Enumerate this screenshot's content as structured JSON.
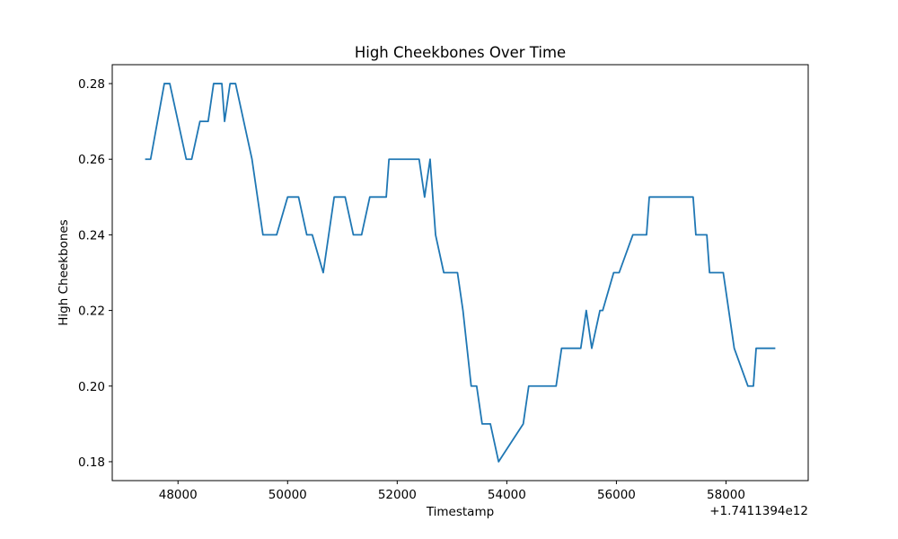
{
  "chart_data": {
    "type": "line",
    "title": "High Cheekbones Over Time",
    "xlabel": "Timestamp",
    "ylabel": "High Cheekbones",
    "x_offset_label": "+1.7411394e12",
    "xlim": [
      46800,
      59500
    ],
    "ylim": [
      0.175,
      0.285
    ],
    "x_ticks": [
      48000,
      50000,
      52000,
      54000,
      56000,
      58000
    ],
    "x_tick_labels": [
      "48000",
      "50000",
      "52000",
      "54000",
      "56000",
      "58000"
    ],
    "y_ticks": [
      0.18,
      0.2,
      0.22,
      0.24,
      0.26,
      0.28
    ],
    "y_tick_labels": [
      "0.18",
      "0.20",
      "0.22",
      "0.24",
      "0.26",
      "0.28"
    ],
    "grid": false,
    "series": [
      {
        "color": "#1f77b4",
        "x": [
          47400,
          47500,
          47750,
          47850,
          48000,
          48150,
          48250,
          48400,
          48550,
          48650,
          48800,
          48850,
          48950,
          49050,
          49200,
          49350,
          49550,
          49800,
          50000,
          50200,
          50350,
          50450,
          50650,
          50850,
          51050,
          51200,
          51350,
          51500,
          51800,
          51850,
          52400,
          52500,
          52600,
          52700,
          52850,
          53100,
          53200,
          53350,
          53450,
          53550,
          53700,
          53850,
          54300,
          54400,
          54900,
          55000,
          55350,
          55450,
          55550,
          55700,
          55750,
          55950,
          56050,
          56300,
          56550,
          56600,
          56650,
          57400,
          57450,
          57650,
          57700,
          57950,
          58150,
          58400,
          58500,
          58550,
          58900
        ],
        "y": [
          0.26,
          0.26,
          0.28,
          0.28,
          0.27,
          0.26,
          0.26,
          0.27,
          0.27,
          0.28,
          0.28,
          0.27,
          0.28,
          0.28,
          0.27,
          0.26,
          0.24,
          0.24,
          0.25,
          0.25,
          0.24,
          0.24,
          0.23,
          0.25,
          0.25,
          0.24,
          0.24,
          0.25,
          0.25,
          0.26,
          0.26,
          0.25,
          0.26,
          0.24,
          0.23,
          0.23,
          0.22,
          0.2,
          0.2,
          0.19,
          0.19,
          0.18,
          0.19,
          0.2,
          0.2,
          0.21,
          0.21,
          0.22,
          0.21,
          0.22,
          0.22,
          0.23,
          0.23,
          0.24,
          0.24,
          0.25,
          0.25,
          0.25,
          0.24,
          0.24,
          0.23,
          0.23,
          0.21,
          0.2,
          0.2,
          0.21,
          0.21
        ]
      }
    ]
  }
}
